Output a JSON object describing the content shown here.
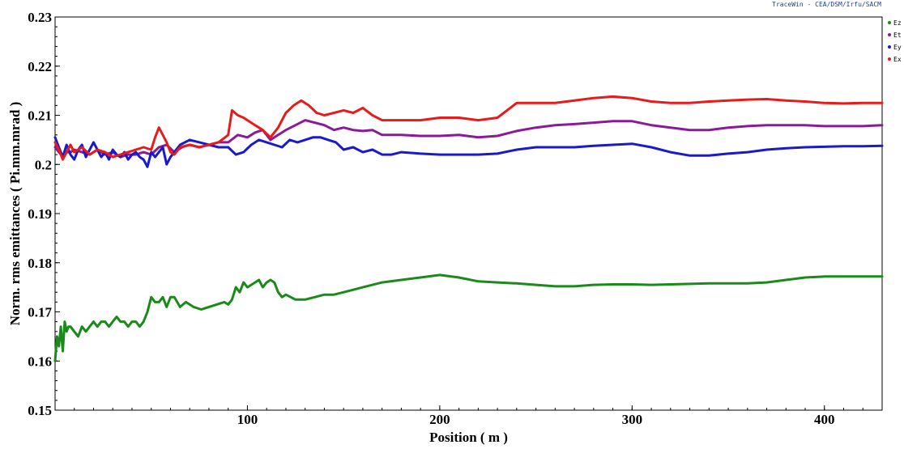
{
  "credit": "TraceWin - CEA/DSM/Irfu/SACM",
  "chart_data": {
    "type": "line",
    "title": "",
    "xlabel": "Position ( m )",
    "ylabel": "Norm. rms emittances ( Pi.mm.mrad )",
    "xlim": [
      0,
      430
    ],
    "ylim": [
      0.15,
      0.23
    ],
    "x_ticks": [
      100,
      200,
      300,
      400
    ],
    "y_ticks": [
      0.15,
      0.16,
      0.17,
      0.18,
      0.19,
      0.2,
      0.21,
      0.22,
      0.23
    ],
    "grid": false,
    "legend_position": "right-top",
    "series": [
      {
        "name": "Ez",
        "color": "#1a8a1a",
        "x": [
          0,
          1,
          2,
          3,
          4,
          5,
          6,
          7,
          8,
          10,
          12,
          14,
          16,
          18,
          20,
          22,
          24,
          26,
          28,
          30,
          32,
          34,
          36,
          38,
          40,
          42,
          44,
          46,
          48,
          50,
          52,
          54,
          56,
          58,
          60,
          62,
          65,
          68,
          72,
          76,
          80,
          84,
          88,
          90,
          92,
          94,
          96,
          98,
          100,
          102,
          104,
          106,
          108,
          110,
          112,
          114,
          116,
          118,
          120,
          125,
          130,
          135,
          140,
          145,
          150,
          155,
          160,
          165,
          170,
          180,
          190,
          200,
          210,
          220,
          230,
          240,
          250,
          260,
          270,
          280,
          290,
          300,
          310,
          320,
          330,
          340,
          350,
          360,
          370,
          380,
          390,
          400,
          410,
          420,
          430
        ],
        "y": [
          0.16,
          0.165,
          0.163,
          0.167,
          0.162,
          0.168,
          0.166,
          0.167,
          0.167,
          0.166,
          0.165,
          0.167,
          0.166,
          0.167,
          0.168,
          0.167,
          0.168,
          0.168,
          0.167,
          0.168,
          0.169,
          0.168,
          0.168,
          0.167,
          0.168,
          0.168,
          0.167,
          0.168,
          0.17,
          0.173,
          0.172,
          0.172,
          0.173,
          0.171,
          0.173,
          0.173,
          0.171,
          0.172,
          0.171,
          0.1705,
          0.171,
          0.1715,
          0.172,
          0.1715,
          0.1725,
          0.175,
          0.174,
          0.176,
          0.175,
          0.1755,
          0.176,
          0.1765,
          0.175,
          0.176,
          0.1765,
          0.176,
          0.174,
          0.173,
          0.1735,
          0.1725,
          0.1725,
          0.173,
          0.1735,
          0.1735,
          0.174,
          0.1745,
          0.175,
          0.1755,
          0.176,
          0.1765,
          0.177,
          0.1775,
          0.177,
          0.1762,
          0.176,
          0.1758,
          0.1755,
          0.1752,
          0.1752,
          0.1755,
          0.1756,
          0.1756,
          0.1755,
          0.1756,
          0.1757,
          0.1758,
          0.1758,
          0.1758,
          0.176,
          0.1765,
          0.177,
          0.1772,
          0.1772,
          0.1772,
          0.1772
        ]
      },
      {
        "name": "Et",
        "color": "#8a1a9a",
        "x": [
          0,
          2,
          4,
          6,
          8,
          10,
          14,
          18,
          22,
          26,
          30,
          34,
          38,
          42,
          46,
          50,
          54,
          58,
          62,
          66,
          70,
          75,
          80,
          85,
          90,
          95,
          100,
          104,
          108,
          112,
          116,
          120,
          125,
          130,
          135,
          140,
          145,
          150,
          155,
          160,
          165,
          170,
          180,
          190,
          200,
          210,
          220,
          230,
          240,
          250,
          260,
          270,
          280,
          290,
          300,
          310,
          320,
          330,
          340,
          350,
          360,
          370,
          380,
          390,
          400,
          410,
          420,
          430
        ],
        "y": [
          0.2035,
          0.2025,
          0.2015,
          0.2025,
          0.2025,
          0.203,
          0.2025,
          0.202,
          0.203,
          0.202,
          0.2025,
          0.2015,
          0.202,
          0.202,
          0.2025,
          0.202,
          0.2035,
          0.204,
          0.2025,
          0.2035,
          0.204,
          0.2035,
          0.204,
          0.2045,
          0.2045,
          0.206,
          0.2055,
          0.2065,
          0.207,
          0.205,
          0.206,
          0.207,
          0.208,
          0.209,
          0.2085,
          0.208,
          0.207,
          0.2075,
          0.207,
          0.2068,
          0.207,
          0.206,
          0.206,
          0.2058,
          0.2058,
          0.206,
          0.2055,
          0.2058,
          0.2068,
          0.2075,
          0.208,
          0.2082,
          0.2085,
          0.2088,
          0.2088,
          0.208,
          0.2075,
          0.207,
          0.207,
          0.2075,
          0.2078,
          0.208,
          0.208,
          0.208,
          0.2078,
          0.2078,
          0.2078,
          0.208
        ]
      },
      {
        "name": "Ey",
        "color": "#1a1acc",
        "x": [
          0,
          2,
          4,
          6,
          8,
          10,
          12,
          14,
          16,
          18,
          20,
          22,
          24,
          26,
          28,
          30,
          32,
          34,
          36,
          38,
          40,
          42,
          44,
          46,
          48,
          50,
          52,
          54,
          56,
          58,
          60,
          62,
          65,
          70,
          75,
          80,
          85,
          90,
          94,
          98,
          102,
          106,
          110,
          114,
          118,
          122,
          126,
          130,
          134,
          138,
          142,
          146,
          150,
          155,
          160,
          165,
          170,
          175,
          180,
          190,
          200,
          210,
          220,
          230,
          240,
          250,
          260,
          270,
          280,
          290,
          300,
          310,
          320,
          330,
          340,
          350,
          360,
          370,
          380,
          390,
          400,
          410,
          420,
          430
        ],
        "y": [
          0.2055,
          0.2035,
          0.2015,
          0.204,
          0.202,
          0.201,
          0.203,
          0.204,
          0.2015,
          0.203,
          0.2045,
          0.203,
          0.2015,
          0.2025,
          0.201,
          0.203,
          0.202,
          0.2015,
          0.2025,
          0.201,
          0.202,
          0.2025,
          0.2015,
          0.201,
          0.1995,
          0.2025,
          0.2015,
          0.2025,
          0.2035,
          0.2,
          0.2015,
          0.2025,
          0.204,
          0.205,
          0.2045,
          0.204,
          0.2035,
          0.2035,
          0.202,
          0.2025,
          0.204,
          0.205,
          0.2045,
          0.204,
          0.2035,
          0.205,
          0.2045,
          0.205,
          0.2055,
          0.2055,
          0.205,
          0.2045,
          0.203,
          0.2035,
          0.2025,
          0.203,
          0.202,
          0.202,
          0.2025,
          0.2022,
          0.202,
          0.202,
          0.202,
          0.2022,
          0.203,
          0.2035,
          0.2035,
          0.2035,
          0.2038,
          0.204,
          0.2042,
          0.2035,
          0.2025,
          0.2018,
          0.2018,
          0.2022,
          0.2025,
          0.203,
          0.2033,
          0.2035,
          0.2036,
          0.2037,
          0.2037,
          0.2038
        ]
      },
      {
        "name": "Ex",
        "color": "#e81a1a",
        "x": [
          0,
          2,
          4,
          6,
          8,
          10,
          14,
          18,
          22,
          26,
          30,
          34,
          38,
          42,
          46,
          50,
          52,
          54,
          56,
          58,
          60,
          62,
          65,
          70,
          75,
          80,
          85,
          90,
          92,
          95,
          98,
          100,
          104,
          108,
          112,
          116,
          120,
          124,
          128,
          132,
          136,
          140,
          145,
          150,
          155,
          160,
          165,
          170,
          180,
          190,
          200,
          210,
          220,
          230,
          240,
          250,
          260,
          270,
          280,
          290,
          300,
          310,
          320,
          330,
          340,
          350,
          360,
          370,
          380,
          390,
          400,
          410,
          420,
          430
        ],
        "y": [
          0.2045,
          0.203,
          0.201,
          0.2025,
          0.204,
          0.2025,
          0.2035,
          0.202,
          0.203,
          0.2025,
          0.2015,
          0.202,
          0.2025,
          0.203,
          0.2035,
          0.203,
          0.2055,
          0.2075,
          0.206,
          0.2045,
          0.2025,
          0.202,
          0.2035,
          0.204,
          0.2035,
          0.204,
          0.2045,
          0.206,
          0.211,
          0.21,
          0.2095,
          0.209,
          0.208,
          0.207,
          0.2055,
          0.2075,
          0.2105,
          0.212,
          0.213,
          0.212,
          0.2105,
          0.21,
          0.2105,
          0.211,
          0.2105,
          0.2115,
          0.21,
          0.209,
          0.209,
          0.209,
          0.2095,
          0.2095,
          0.209,
          0.2095,
          0.2125,
          0.2125,
          0.2125,
          0.213,
          0.2135,
          0.2138,
          0.2135,
          0.2128,
          0.2125,
          0.2125,
          0.2128,
          0.213,
          0.2132,
          0.2133,
          0.213,
          0.2128,
          0.2125,
          0.2124,
          0.2125,
          0.2125
        ]
      }
    ]
  }
}
